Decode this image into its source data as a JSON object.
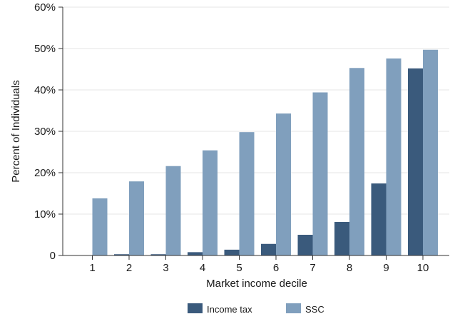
{
  "chart_data": {
    "type": "bar",
    "categories": [
      "1",
      "2",
      "3",
      "4",
      "5",
      "6",
      "7",
      "8",
      "9",
      "10"
    ],
    "series": [
      {
        "name": "Income tax",
        "color": "#3a5a7c",
        "values": [
          0,
          0.3,
          0.3,
          0.8,
          1.4,
          2.8,
          5.0,
          8.1,
          17.4,
          45.2
        ]
      },
      {
        "name": "SSC",
        "color": "#809fbd",
        "values": [
          13.8,
          17.9,
          21.6,
          25.4,
          29.8,
          34.3,
          39.4,
          45.3,
          47.6,
          49.7
        ]
      }
    ],
    "title": "",
    "xlabel": "Market income decile",
    "ylabel": "Percent of Individuals",
    "ylim": [
      0,
      60
    ],
    "yticks": [
      0,
      10,
      20,
      30,
      40,
      50,
      60
    ],
    "ytick_labels": [
      "0",
      "10%",
      "20%",
      "30%",
      "40%",
      "50%",
      "60%"
    ],
    "grid": "y-major",
    "legend": "bottom-center"
  }
}
